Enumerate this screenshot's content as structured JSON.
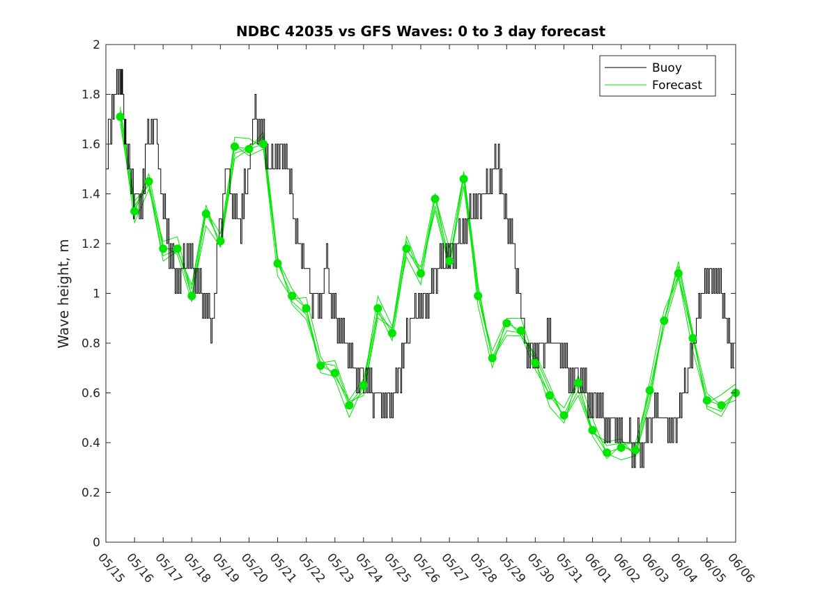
{
  "chart_data": {
    "type": "line",
    "title": "NDBC 42035 vs GFS Waves: 0 to 3 day forecast",
    "xlabel": "",
    "ylabel": "Wave height, m",
    "ylim": [
      0,
      2
    ],
    "yticks": [
      "0",
      "0.2",
      "0.4",
      "0.6",
      "0.8",
      "1",
      "1.2",
      "1.4",
      "1.6",
      "1.8",
      "2"
    ],
    "xlim": [
      "05/15",
      "06/06"
    ],
    "xticks": [
      "05/15",
      "05/16",
      "05/17",
      "05/18",
      "05/19",
      "05/20",
      "05/21",
      "05/22",
      "05/23",
      "05/24",
      "05/25",
      "05/26",
      "05/27",
      "05/28",
      "05/29",
      "05/30",
      "05/31",
      "06/01",
      "06/02",
      "06/03",
      "06/04",
      "06/05",
      "06/06"
    ],
    "grid": false,
    "legend_position": "top-right",
    "colors": {
      "buoy": "#000000",
      "forecast": "#00e600",
      "axes": "#262626"
    },
    "series": [
      {
        "name": "Buoy",
        "x_days": [
          0.0,
          0.25,
          0.5,
          0.6,
          0.75,
          1.0,
          1.25,
          1.5,
          1.75,
          2.0,
          2.25,
          2.5,
          2.75,
          3.0,
          3.25,
          3.5,
          3.75,
          4.0,
          4.25,
          4.5,
          4.75,
          5.0,
          5.25,
          5.5,
          5.75,
          6.0,
          6.25,
          6.5,
          6.75,
          7.0,
          7.25,
          7.5,
          7.75,
          8.0,
          8.25,
          8.5,
          8.75,
          9.0,
          9.25,
          9.5,
          9.75,
          10.0,
          10.25,
          10.5,
          10.75,
          11.0,
          11.25,
          11.5,
          11.75,
          12.0,
          12.25,
          12.5,
          12.75,
          13.0,
          13.25,
          13.5,
          13.75,
          14.0,
          14.25,
          14.5,
          14.75,
          15.0,
          15.25,
          15.5,
          15.75,
          16.0,
          16.25,
          16.5,
          16.75,
          17.0,
          17.25,
          17.5,
          17.75,
          18.0,
          18.25,
          18.5,
          18.75,
          19.0,
          19.25,
          19.5,
          19.75,
          20.0,
          20.25,
          20.5,
          20.75,
          21.0,
          21.25,
          21.5,
          21.75,
          22.0
        ],
        "values": [
          1.45,
          1.75,
          1.85,
          1.8,
          1.6,
          1.4,
          1.35,
          1.6,
          1.7,
          1.35,
          1.2,
          1.05,
          1.1,
          1.15,
          1.05,
          0.95,
          0.9,
          1.2,
          1.5,
          1.35,
          1.3,
          1.5,
          1.7,
          1.65,
          1.5,
          1.55,
          1.6,
          1.4,
          1.2,
          1.1,
          1.0,
          0.95,
          1.1,
          0.9,
          0.85,
          0.8,
          0.7,
          0.65,
          0.6,
          0.6,
          0.55,
          0.6,
          0.65,
          0.8,
          0.9,
          0.95,
          1.0,
          1.05,
          1.1,
          1.15,
          1.2,
          1.25,
          1.3,
          1.35,
          1.4,
          1.45,
          1.55,
          1.3,
          1.2,
          0.95,
          0.75,
          0.8,
          0.75,
          0.85,
          0.8,
          0.75,
          0.7,
          0.65,
          0.6,
          0.55,
          0.55,
          0.5,
          0.45,
          0.45,
          0.4,
          0.4,
          0.4,
          0.45,
          0.55,
          0.5,
          0.45,
          0.5,
          0.6,
          0.75,
          0.95,
          1.05,
          1.1,
          1.0,
          0.85,
          0.75
        ]
      },
      {
        "name": "Forecast",
        "x_days": [
          0.5,
          1.0,
          1.5,
          2.0,
          2.5,
          3.0,
          3.5,
          4.0,
          4.5,
          5.0,
          5.5,
          6.0,
          6.5,
          7.0,
          7.5,
          8.0,
          8.5,
          9.0,
          9.5,
          10.0,
          10.5,
          11.0,
          11.5,
          12.0,
          12.5,
          13.0,
          13.5,
          14.0,
          14.5,
          15.0,
          15.5,
          16.0,
          16.5,
          17.0,
          17.5,
          18.0,
          18.5,
          19.0,
          19.5,
          20.0,
          20.5,
          21.0,
          21.5,
          22.0
        ],
        "values": [
          1.71,
          1.33,
          1.45,
          1.18,
          1.18,
          0.99,
          1.32,
          1.21,
          1.59,
          1.58,
          1.6,
          1.12,
          0.99,
          0.94,
          0.71,
          0.68,
          0.55,
          0.63,
          0.94,
          0.84,
          1.18,
          1.08,
          1.38,
          1.13,
          1.46,
          0.99,
          0.74,
          0.88,
          0.85,
          0.72,
          0.59,
          0.51,
          0.64,
          0.45,
          0.36,
          0.38,
          0.37,
          0.61,
          0.89,
          1.08,
          0.82,
          0.57,
          0.55,
          0.6
        ]
      }
    ]
  }
}
